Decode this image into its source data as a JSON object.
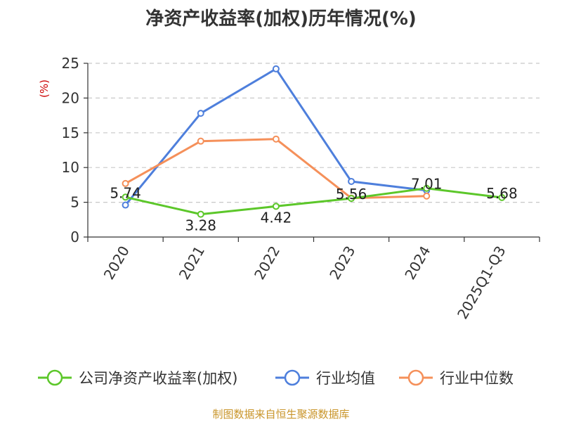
{
  "chart_data": {
    "type": "line",
    "title": "净资产收益率(加权)历年情况(%)",
    "ylabel": "(%)",
    "xlabel": "",
    "categories": [
      "2020",
      "2021",
      "2022",
      "2023",
      "2024",
      "2025Q1-Q3"
    ],
    "ylim": [
      0,
      25
    ],
    "yticks": [
      0,
      5,
      10,
      15,
      20,
      25
    ],
    "grid": true,
    "legend_position": "bottom",
    "series": [
      {
        "name": "公司净资产收益率(加权)",
        "color": "#5cc72a",
        "values": [
          5.74,
          3.28,
          4.42,
          5.56,
          7.01,
          5.68
        ],
        "labels": [
          "5.74",
          "3.28",
          "4.42",
          "5.56",
          "7.01",
          "5.68"
        ]
      },
      {
        "name": "行业均值",
        "color": "#4e7fdc",
        "values": [
          4.6,
          17.8,
          24.2,
          8.0,
          6.7,
          null
        ]
      },
      {
        "name": "行业中位数",
        "color": "#f5905a",
        "values": [
          7.7,
          13.8,
          14.1,
          5.6,
          5.9,
          null
        ]
      }
    ]
  },
  "source": "制图数据来自恒生聚源数据库"
}
